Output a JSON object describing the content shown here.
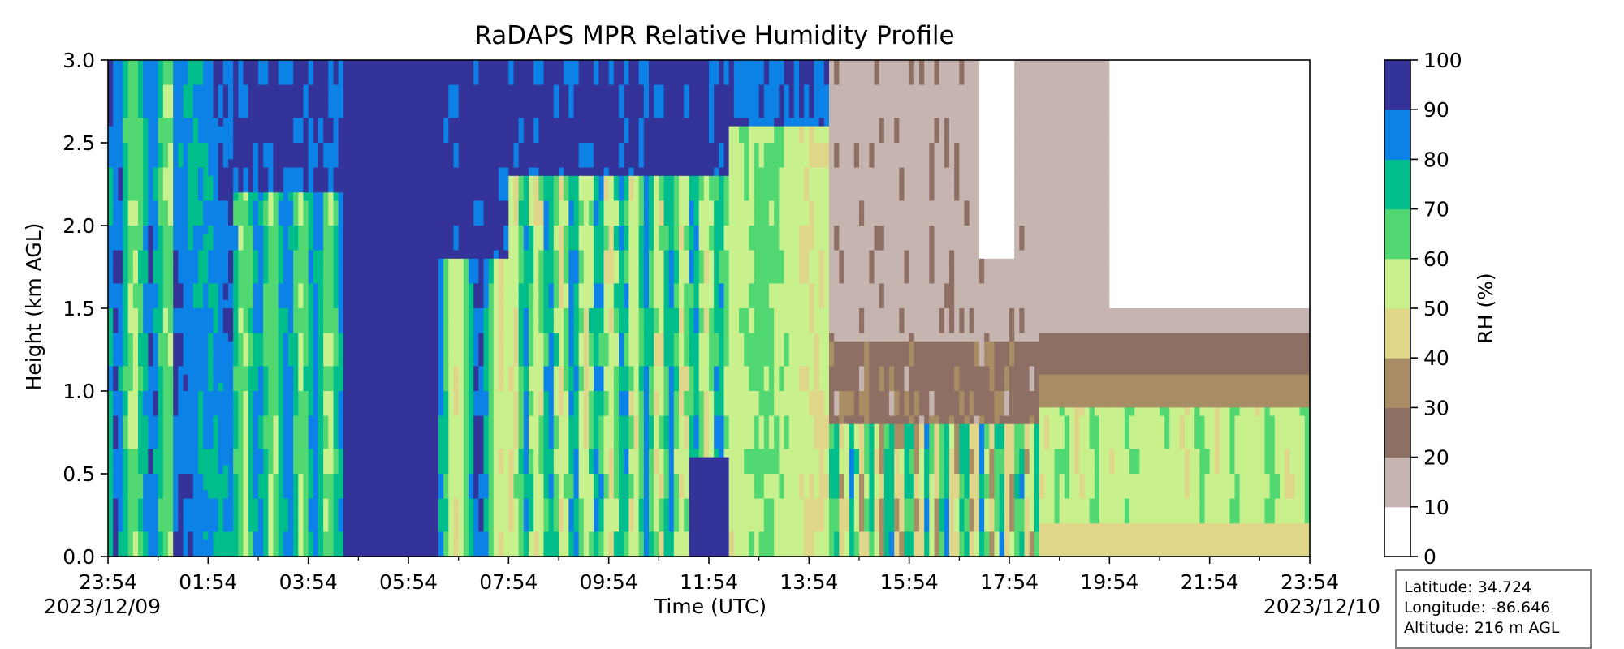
{
  "chart_data": {
    "type": "heatmap",
    "title": "RaDAPS MPR Relative Humidity Profile",
    "xlabel": "Time (UTC)",
    "ylabel": "Height (km AGL)",
    "x_tick_labels": [
      "23:54",
      "01:54",
      "03:54",
      "05:54",
      "07:54",
      "09:54",
      "11:54",
      "13:54",
      "15:54",
      "17:54",
      "19:54",
      "21:54",
      "23:54"
    ],
    "x_date_labels": {
      "start": "2023/12/09",
      "end": "2023/12/10"
    },
    "y_ticks": [
      "0.0",
      "0.5",
      "1.0",
      "1.5",
      "2.0",
      "2.5",
      "3.0"
    ],
    "ylim": [
      0,
      3
    ],
    "xlim_hours": [
      0,
      24
    ],
    "colorbar": {
      "label": "RH (%)",
      "ticks": [
        "0",
        "10",
        "20",
        "30",
        "40",
        "50",
        "60",
        "70",
        "80",
        "90",
        "100"
      ],
      "levels": [
        0,
        10,
        20,
        30,
        40,
        50,
        60,
        70,
        80,
        90,
        100
      ],
      "colors": [
        "#ffffff",
        "#c6b4b0",
        "#8e6f64",
        "#a88c64",
        "#e0d68a",
        "#c8f08c",
        "#52d873",
        "#00bd8c",
        "#0c82e6",
        "#333399"
      ]
    },
    "time_segments": [
      {
        "start": "23:54",
        "end": "01:14",
        "dominant_rh": "70-80",
        "note": "moist, mostly 70-90%"
      },
      {
        "start": "01:14",
        "end": "02:24",
        "dominant_rh": "80-90",
        "note": "moist"
      },
      {
        "start": "02:24",
        "end": "04:34",
        "dominant_rh": "70-90",
        "note": "moist with 90-100% aloft"
      },
      {
        "start": "04:34",
        "end": "07:54",
        "dominant_rh": "90-100",
        "note": "saturated column"
      },
      {
        "start": "07:54",
        "end": "12:24",
        "dominant_rh": "60-80",
        "note": "variable 50-90%"
      },
      {
        "start": "12:24",
        "end": "14:24",
        "dominant_rh": "50-70",
        "note": "drying"
      },
      {
        "start": "14:24",
        "end": "18:34",
        "dominant_rh": "10-30",
        "note": "dry aloft, moist near surface"
      },
      {
        "start": "18:34",
        "end": "23:54",
        "dominant_rh": "0-20",
        "note": "very dry above 1.4 km, 40-60% below 1 km"
      }
    ]
  },
  "info": {
    "latitude": "Latitude: 34.724",
    "longitude": "Longitude: -86.646",
    "altitude": "Altitude: 216 m AGL"
  }
}
